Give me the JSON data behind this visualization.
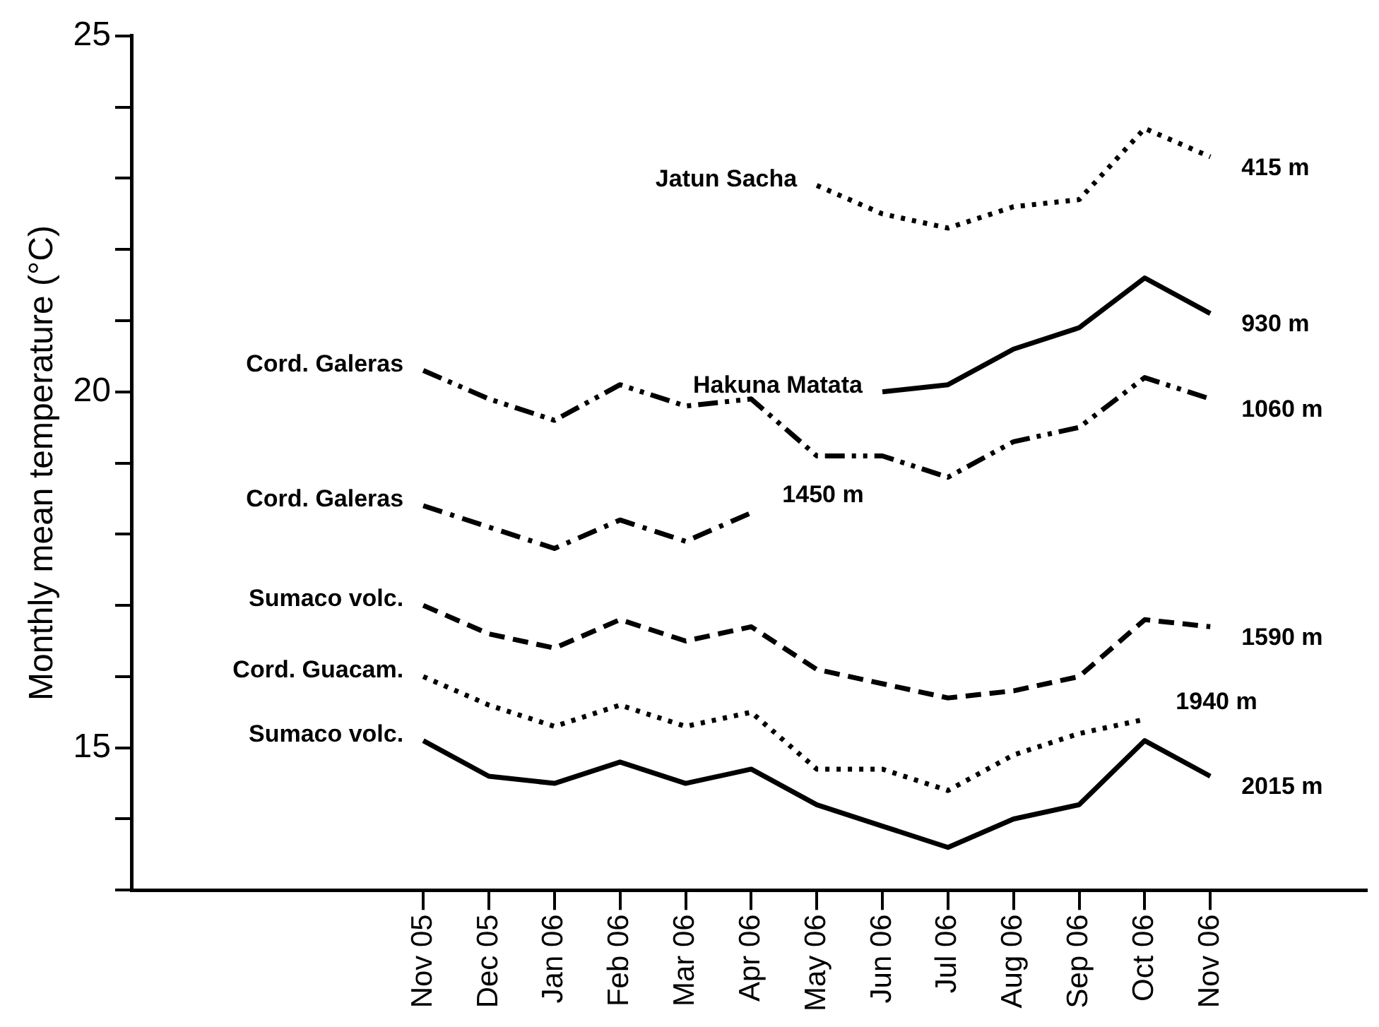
{
  "chart_data": {
    "type": "line",
    "ylabel": "Monthly mean temperature (°C)",
    "categories": [
      "Nov 05",
      "Dec 05",
      "Jan 06",
      "Feb 06",
      "Mar 06",
      "Apr 06",
      "May 06",
      "Jun 06",
      "Jul 06",
      "Aug 06",
      "Sep 06",
      "Oct 06",
      "Nov 06"
    ],
    "series": [
      {
        "name": "Jatun Sacha",
        "color": "#000000",
        "line_style": "dotted",
        "values": [
          null,
          null,
          null,
          null,
          null,
          null,
          22.9,
          22.5,
          22.3,
          22.6,
          22.7,
          23.7,
          23.3
        ]
      },
      {
        "name": "Hakuna Matata",
        "color": "#000000",
        "line_style": "solid",
        "values": [
          null,
          null,
          null,
          null,
          null,
          null,
          null,
          20.0,
          20.1,
          20.6,
          20.9,
          21.6,
          21.1
        ]
      },
      {
        "name": "Cord. Galeras",
        "color": "#000000",
        "line_style": "dashdotdot",
        "values": [
          20.3,
          19.9,
          19.6,
          20.1,
          19.8,
          19.9,
          19.1,
          19.1,
          18.8,
          19.3,
          19.5,
          20.2,
          19.9
        ]
      },
      {
        "name": "Cord. Galeras",
        "color": "#000000",
        "line_style": "dashdot",
        "values": [
          18.4,
          18.1,
          17.8,
          18.2,
          17.9,
          18.3,
          null,
          null,
          null,
          null,
          null,
          null,
          null
        ]
      },
      {
        "name": "Sumaco volc.",
        "color": "#000000",
        "line_style": "dashed",
        "values": [
          17.0,
          16.6,
          16.4,
          16.8,
          16.5,
          16.7,
          16.1,
          15.9,
          15.7,
          15.8,
          16.0,
          16.8,
          16.7
        ]
      },
      {
        "name": "Cord. Guacam.",
        "color": "#000000",
        "line_style": "dotted",
        "values": [
          16.0,
          15.6,
          15.3,
          15.6,
          15.3,
          15.5,
          14.7,
          14.7,
          14.4,
          14.9,
          15.2,
          15.4,
          null
        ]
      },
      {
        "name": "Sumaco volc.",
        "color": "#000000",
        "line_style": "solid",
        "values": [
          15.1,
          14.6,
          14.5,
          14.8,
          14.5,
          14.7,
          14.2,
          13.9,
          13.6,
          14.0,
          14.2,
          15.1,
          14.6
        ]
      }
    ],
    "annotations": [
      {
        "text": "415 m",
        "x": "Nov 06",
        "y": 23.3
      },
      {
        "text": "930 m",
        "x": "Nov 06",
        "y": 21.1
      },
      {
        "text": "1060 m",
        "x": "Nov 06",
        "y": 19.9
      },
      {
        "text": "1450 m",
        "x": "Apr 06",
        "y": 18.3
      },
      {
        "text": "1590 m",
        "x": "Nov 06",
        "y": 16.7
      },
      {
        "text": "1940 m",
        "x": "Oct 06",
        "y": 15.4
      },
      {
        "text": "2015 m",
        "x": "Nov 06",
        "y": 14.6
      }
    ],
    "ylim": [
      13,
      25
    ],
    "yticks": [
      15,
      20,
      25
    ],
    "grid": false,
    "legend": false,
    "marker": "none"
  }
}
